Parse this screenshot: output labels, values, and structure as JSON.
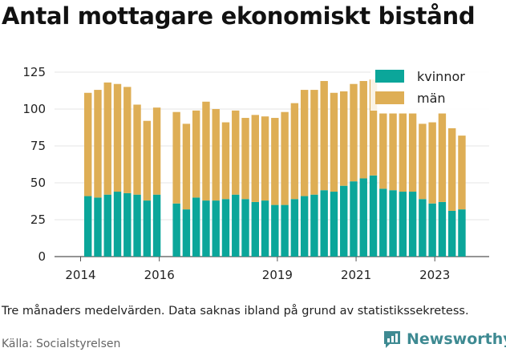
{
  "title": "Antal mottagare ekonomiskt bistånd",
  "subtitle": "Tre månaders medelvärden. Data saknas ibland på grund av statistikssekretess.",
  "source": "Källa: Socialstyrelsen",
  "brand": "Newsworthy",
  "colors": {
    "kvinnor": "#0ba69a",
    "man": "#deae55",
    "brand": "#3e8a92"
  },
  "chart_data": {
    "type": "bar",
    "stacked": true,
    "grid": true,
    "legend_position": "top-right",
    "ylim": [
      0,
      125
    ],
    "yticks": [
      0,
      25,
      50,
      75,
      100,
      125
    ],
    "x_tick_labels": [
      "2014",
      "2016",
      "2019",
      "2021",
      "2023"
    ],
    "series": [
      {
        "name": "kvinnor",
        "values": [
          41,
          40,
          42,
          44,
          43,
          42,
          38,
          42,
          null,
          36,
          32,
          40,
          38,
          38,
          39,
          42,
          39,
          37,
          38,
          35,
          35,
          39,
          41,
          42,
          45,
          44,
          48,
          51,
          53,
          55,
          46,
          45,
          44,
          44,
          39,
          36,
          37,
          31,
          32
        ]
      },
      {
        "name": "män",
        "values": [
          70,
          73,
          76,
          73,
          72,
          61,
          54,
          59,
          null,
          62,
          58,
          59,
          67,
          62,
          52,
          57,
          55,
          59,
          57,
          59,
          63,
          65,
          72,
          71,
          74,
          67,
          64,
          66,
          66,
          65,
          51,
          52,
          53,
          53,
          51,
          55,
          60,
          56,
          50
        ]
      }
    ]
  }
}
